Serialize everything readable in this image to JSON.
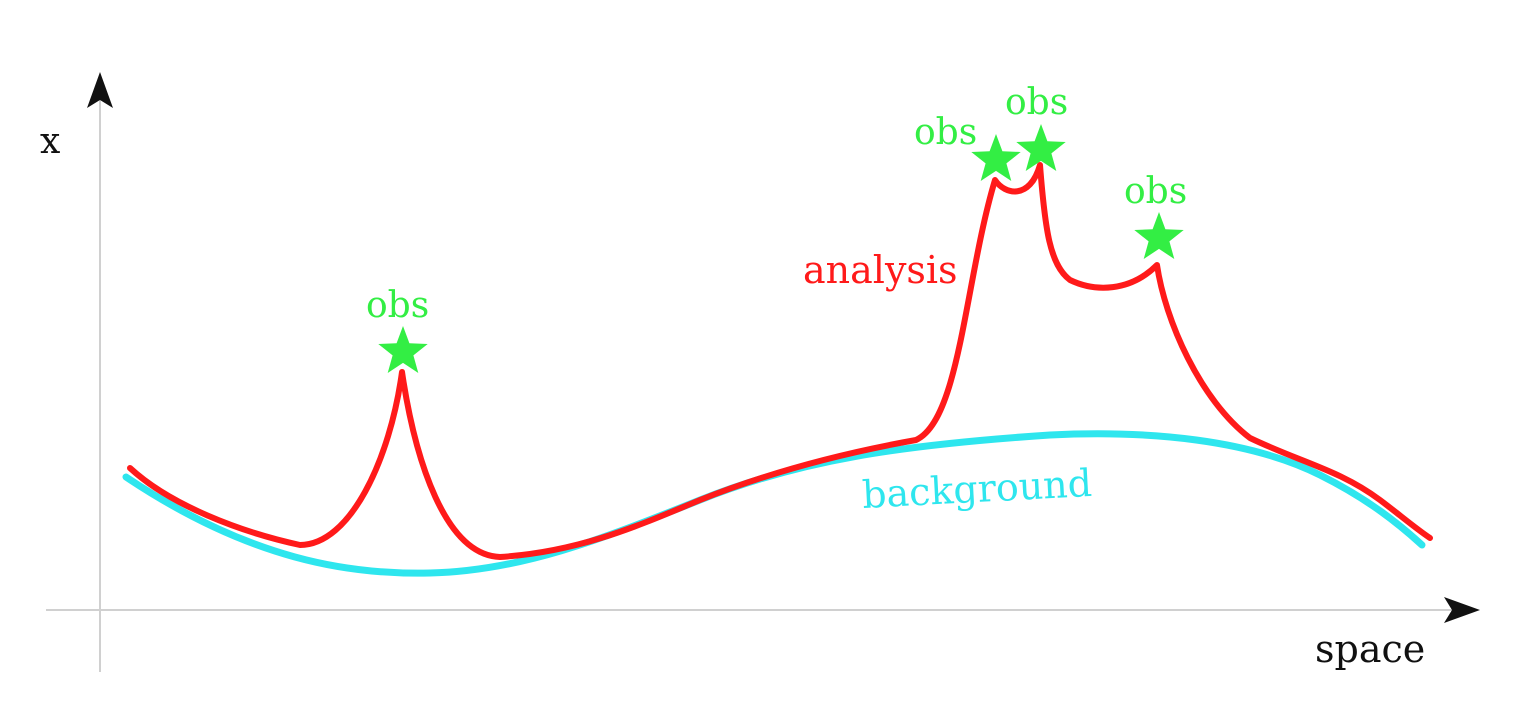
{
  "axes": {
    "y_label": "x",
    "x_label": "space"
  },
  "curves": {
    "analysis": {
      "label": "analysis",
      "color": "#ff1a1a"
    },
    "background": {
      "label": "background",
      "color": "#2ee6ee"
    }
  },
  "observations": {
    "label": "obs",
    "color": "#33ee44",
    "marker_icon": "star-icon",
    "items": [
      {
        "label": "obs"
      },
      {
        "label": "obs"
      },
      {
        "label": "obs"
      },
      {
        "label": "obs"
      }
    ]
  }
}
